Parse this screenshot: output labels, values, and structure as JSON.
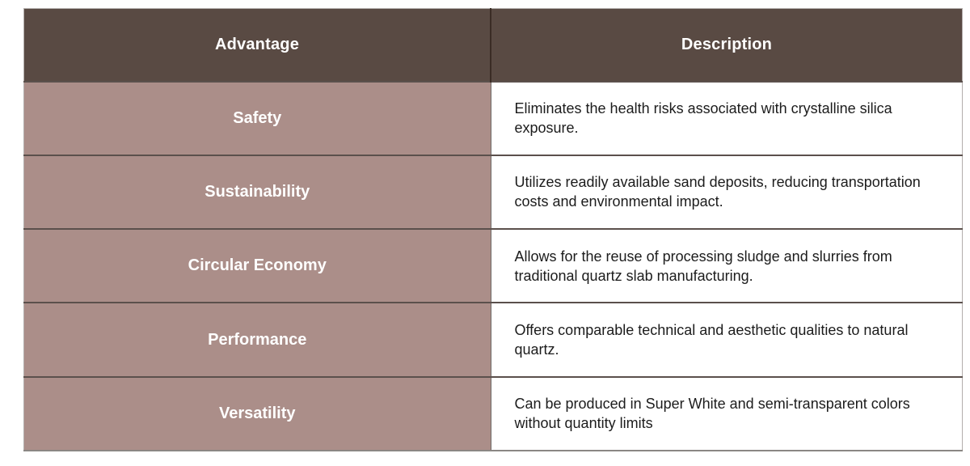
{
  "chart_data": {
    "type": "table",
    "columns": [
      "Advantage",
      "Description"
    ],
    "rows": [
      [
        "Safety",
        "Eliminates the health risks associated with crystalline silica exposure."
      ],
      [
        "Sustainability",
        "Utilizes readily available sand deposits, reducing transportation costs and environmental impact."
      ],
      [
        "Circular Economy",
        "Allows for the reuse of processing sludge and slurries from traditional quartz slab manufacturing."
      ],
      [
        "Performance",
        "Offers comparable technical and aesthetic qualities to natural quartz."
      ],
      [
        "Versatility",
        "Can be produced in Super White and semi-transparent colors without quantity limits"
      ]
    ]
  },
  "colors": {
    "header_bg": "#594a43",
    "header_text": "#ffffff",
    "advantage_bg": "#ab8e89",
    "advantage_text": "#ffffff",
    "description_bg": "#ffffff",
    "description_text": "#1c1c1c"
  }
}
